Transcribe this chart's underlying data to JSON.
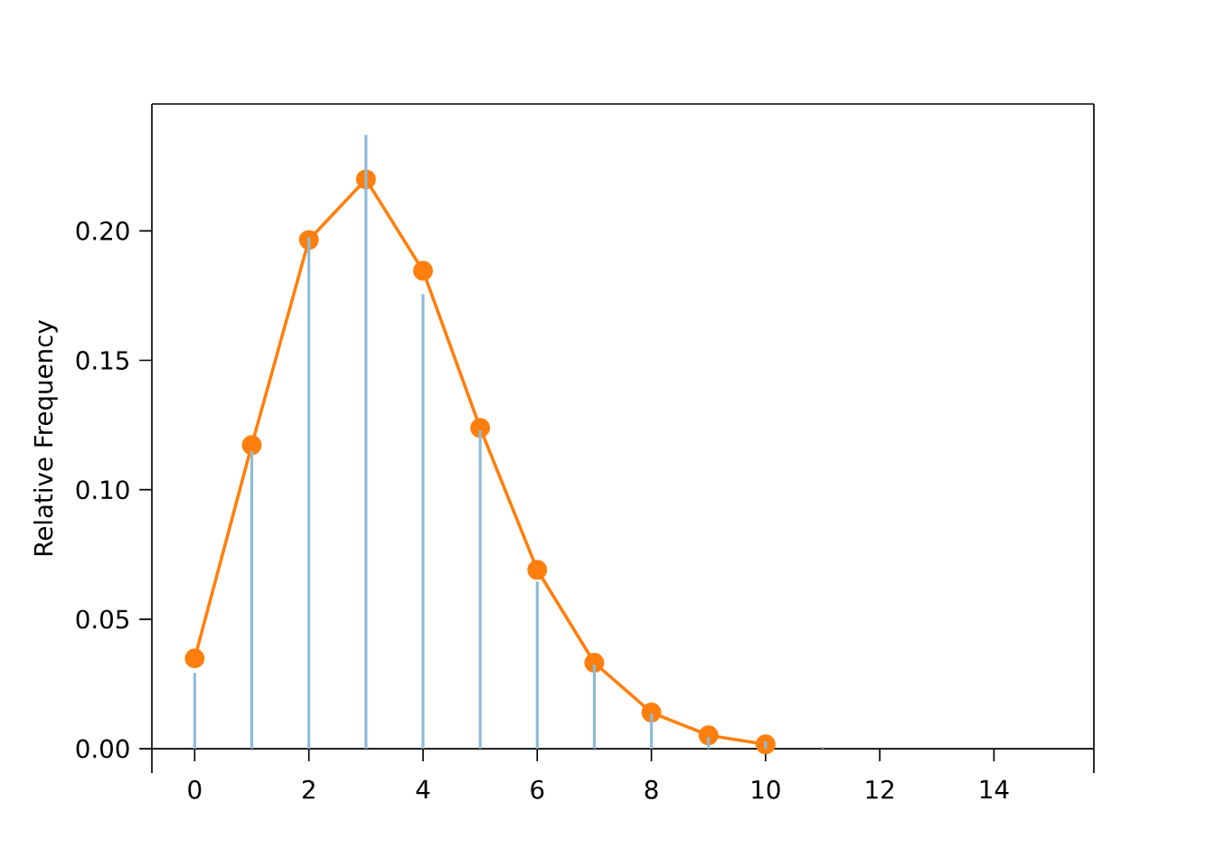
{
  "chart_data": {
    "type": "bar",
    "ylabel": "Relative Frequency",
    "xlim": [
      -0.75,
      15.75
    ],
    "ylim": [
      -0.0094,
      0.249
    ],
    "xticks": [
      0,
      2,
      4,
      6,
      8,
      10,
      12,
      14
    ],
    "yticks": [
      {
        "value": 0,
        "label": "0.00"
      },
      {
        "value": 0.05,
        "label": "0.05"
      },
      {
        "value": 0.1,
        "label": "0.10"
      },
      {
        "value": 0.15,
        "label": "0.15"
      },
      {
        "value": 0.2,
        "label": "0.20"
      }
    ],
    "series": [
      {
        "color": "#8fbbd9",
        "x": [
          0,
          1,
          2,
          3,
          4,
          5,
          6,
          7,
          8,
          9,
          10,
          11
        ],
        "values": [
          0.0293,
          0.115,
          0.1976,
          0.237,
          0.1756,
          0.1229,
          0.0646,
          0.0325,
          0.0136,
          0.0045,
          0.0028,
          0.0007
        ]
      },
      {
        "type": "line",
        "color": "#ff7f0e",
        "marker": "circle",
        "x": [
          0,
          1,
          2,
          3,
          4,
          5,
          6,
          7,
          8,
          9,
          10
        ],
        "values": [
          0.0349,
          0.1173,
          0.1965,
          0.2199,
          0.1846,
          0.1239,
          0.0691,
          0.0332,
          0.014,
          0.0052,
          0.0017
        ]
      }
    ]
  }
}
